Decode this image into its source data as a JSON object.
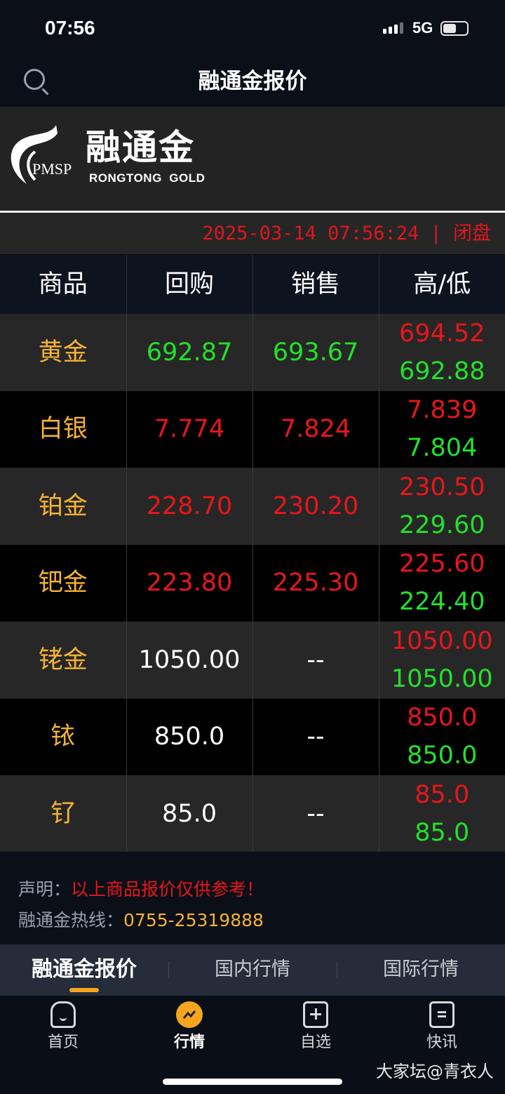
{
  "status_bar": {
    "time": "07:56",
    "network": "5G"
  },
  "header": {
    "title": "融通金报价",
    "search_icon": "search-icon"
  },
  "logo": {
    "mark": "PMSP",
    "name_cn": "融通金",
    "name_en": "RONGTONG  GOLD"
  },
  "timestamp": "2025-03-14 07:56:24 | 闭盘",
  "table": {
    "headers": [
      "商品",
      "回购",
      "销售",
      "高/低"
    ],
    "rows": [
      {
        "name": "黄金",
        "buy": "692.87",
        "buy_color": "green",
        "sell": "693.67",
        "sell_color": "green",
        "high": "694.52",
        "low": "692.88"
      },
      {
        "name": "白银",
        "buy": "7.774",
        "buy_color": "red",
        "sell": "7.824",
        "sell_color": "red",
        "high": "7.839",
        "low": "7.804"
      },
      {
        "name": "铂金",
        "buy": "228.70",
        "buy_color": "red",
        "sell": "230.20",
        "sell_color": "red",
        "high": "230.50",
        "low": "229.60"
      },
      {
        "name": "钯金",
        "buy": "223.80",
        "buy_color": "red",
        "sell": "225.30",
        "sell_color": "red",
        "high": "225.60",
        "low": "224.40"
      },
      {
        "name": "铑金",
        "buy": "1050.00",
        "buy_color": "white",
        "sell": "--",
        "sell_color": "white",
        "high": "1050.00",
        "low": "1050.00"
      },
      {
        "name": "铱",
        "buy": "850.0",
        "buy_color": "white",
        "sell": "--",
        "sell_color": "white",
        "high": "850.0",
        "low": "850.0"
      },
      {
        "name": "钌",
        "buy": "85.0",
        "buy_color": "white",
        "sell": "--",
        "sell_color": "white",
        "high": "85.0",
        "low": "85.0"
      }
    ]
  },
  "footer": {
    "disclaimer_label": "声明：",
    "disclaimer": "以上商品报价仅供参考！",
    "hotline_label": "融通金热线：",
    "hotline": "0755-25319888"
  },
  "tabs": [
    {
      "label": "融通金报价",
      "active": true
    },
    {
      "label": "国内行情"
    },
    {
      "label": "国际行情"
    }
  ],
  "nav": [
    {
      "label": "首页",
      "icon": "home-icon"
    },
    {
      "label": "行情",
      "icon": "trend-icon",
      "active": true
    },
    {
      "label": "自选",
      "icon": "bookmark-add-icon"
    },
    {
      "label": "快讯",
      "icon": "news-icon"
    }
  ],
  "watermark": "大家坛@青衣人",
  "colors": {
    "up": "#e8161b",
    "down": "#22e12a",
    "name": "#f5b335",
    "accent": "#f5a61e"
  }
}
